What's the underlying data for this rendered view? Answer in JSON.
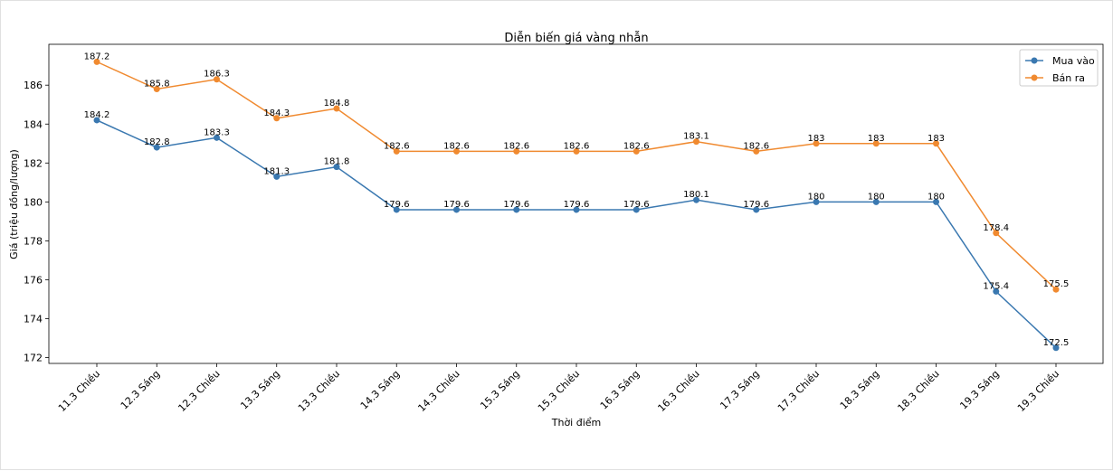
{
  "chart_data": {
    "type": "line",
    "title": "Diễn biến giá vàng nhẫn",
    "xlabel": "Thời điểm",
    "ylabel": "Giá (triệu đồng/lượng)",
    "categories": [
      "11.3 Chiều",
      "12.3 Sáng",
      "12.3 Chiều",
      "13.3 Sáng",
      "13.3 Chiều",
      "14.3 Sáng",
      "14.3 Chiều",
      "15.3 Sáng",
      "15.3 Chiều",
      "16.3 Sáng",
      "16.3 Chiều",
      "17.3 Sáng",
      "17.3 Chiều",
      "18.3 Sáng",
      "18.3 Chiều",
      "19.3 Sáng",
      "19.3 Chiều"
    ],
    "series": [
      {
        "name": "Mua vào",
        "color": "#3a78b0",
        "values": [
          184.2,
          182.8,
          183.3,
          181.3,
          181.8,
          179.6,
          179.6,
          179.6,
          179.6,
          179.6,
          180.1,
          179.6,
          180,
          180,
          180,
          175.4,
          172.5
        ]
      },
      {
        "name": "Bán ra",
        "color": "#f08a30",
        "values": [
          187.2,
          185.8,
          186.3,
          184.3,
          184.8,
          182.6,
          182.6,
          182.6,
          182.6,
          182.6,
          183.1,
          182.6,
          183,
          183,
          183,
          178.4,
          175.5
        ]
      }
    ],
    "yticks": [
      172,
      174,
      176,
      178,
      180,
      182,
      184,
      186
    ],
    "ylim": [
      171.7,
      188.1
    ],
    "grid": false,
    "legend": "top-right",
    "marker": "circle",
    "data_labels": true
  }
}
